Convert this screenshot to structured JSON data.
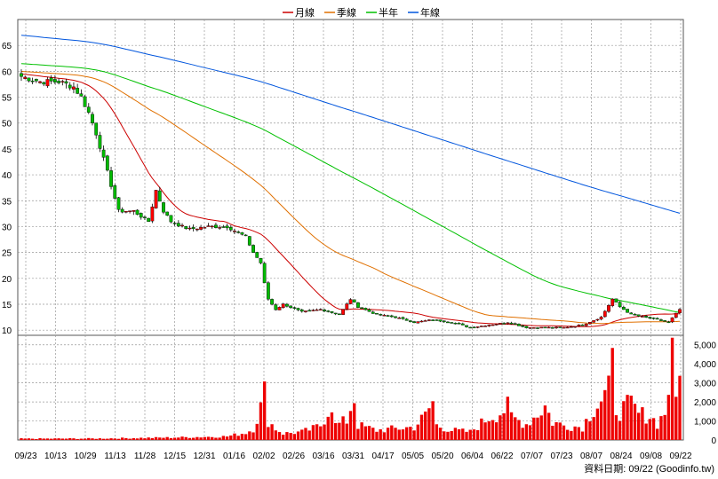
{
  "chart_data": {
    "type": "candlestick",
    "legend": [
      {
        "name": "月線",
        "color": "#cc0000"
      },
      {
        "name": "季線",
        "color": "#e07000"
      },
      {
        "name": "半年",
        "color": "#00c000"
      },
      {
        "name": "年線",
        "color": "#0055dd"
      }
    ],
    "price_axis": {
      "ylim": [
        9,
        70
      ],
      "ticks": [
        10,
        15,
        20,
        25,
        30,
        35,
        40,
        45,
        50,
        55,
        60,
        65
      ]
    },
    "volume_axis": {
      "ylim": [
        0,
        5500
      ],
      "ticks": [
        0,
        1000,
        2000,
        3000,
        4000,
        5000
      ],
      "tick_labels": [
        "0",
        "1,000",
        "2,000",
        "3,000",
        "4,000",
        "5,000"
      ]
    },
    "x_tick_labels": [
      "09/23",
      "10/13",
      "10/29",
      "11/13",
      "11/28",
      "12/15",
      "12/31",
      "01/16",
      "02/02",
      "02/26",
      "03/16",
      "03/31",
      "04/17",
      "05/05",
      "05/20",
      "06/04",
      "06/22",
      "07/07",
      "07/23",
      "08/07",
      "08/24",
      "09/08",
      "09/22"
    ],
    "price_anchors": [
      [
        0,
        59
      ],
      [
        5,
        58
      ],
      [
        10,
        58
      ],
      [
        14,
        57
      ],
      [
        16,
        55
      ],
      [
        18,
        52
      ],
      [
        20,
        48
      ],
      [
        22,
        43
      ],
      [
        24,
        38
      ],
      [
        26,
        33
      ],
      [
        30,
        33
      ],
      [
        32,
        32
      ],
      [
        34,
        31
      ],
      [
        36,
        37
      ],
      [
        38,
        33
      ],
      [
        40,
        31
      ],
      [
        43,
        30
      ],
      [
        45,
        29.5
      ],
      [
        50,
        30
      ],
      [
        55,
        30
      ],
      [
        60,
        28
      ],
      [
        62,
        25
      ],
      [
        64,
        23
      ],
      [
        65,
        19
      ],
      [
        66,
        16
      ],
      [
        68,
        14
      ],
      [
        70,
        15
      ],
      [
        75,
        13.5
      ],
      [
        80,
        14
      ],
      [
        85,
        13
      ],
      [
        88,
        16
      ],
      [
        90,
        14.5
      ],
      [
        95,
        13
      ],
      [
        100,
        12.5
      ],
      [
        105,
        11.5
      ],
      [
        110,
        12
      ],
      [
        115,
        11.5
      ],
      [
        120,
        10.5
      ],
      [
        125,
        11
      ],
      [
        130,
        11.5
      ],
      [
        135,
        10.5
      ],
      [
        140,
        10.5
      ],
      [
        145,
        10.5
      ],
      [
        150,
        11
      ],
      [
        155,
        12.5
      ],
      [
        158,
        16
      ],
      [
        160,
        14.5
      ],
      [
        163,
        13
      ],
      [
        170,
        12
      ],
      [
        173,
        11.5
      ],
      [
        176,
        14
      ]
    ],
    "volume_anchors": [
      [
        0,
        80
      ],
      [
        20,
        90
      ],
      [
        40,
        150
      ],
      [
        55,
        220
      ],
      [
        60,
        450
      ],
      [
        62,
        700
      ],
      [
        64,
        2000
      ],
      [
        65,
        2900
      ],
      [
        66,
        1200
      ],
      [
        68,
        700
      ],
      [
        70,
        400
      ],
      [
        75,
        500
      ],
      [
        78,
        700
      ],
      [
        80,
        900
      ],
      [
        82,
        1800
      ],
      [
        83,
        2300
      ],
      [
        84,
        900
      ],
      [
        87,
        1200
      ],
      [
        88,
        2000
      ],
      [
        89,
        2600
      ],
      [
        90,
        900
      ],
      [
        95,
        600
      ],
      [
        100,
        700
      ],
      [
        105,
        800
      ],
      [
        108,
        1500
      ],
      [
        110,
        2350
      ],
      [
        111,
        900
      ],
      [
        115,
        600
      ],
      [
        120,
        500
      ],
      [
        125,
        1400
      ],
      [
        128,
        1700
      ],
      [
        130,
        2000
      ],
      [
        131,
        1400
      ],
      [
        135,
        1000
      ],
      [
        138,
        1600
      ],
      [
        140,
        2100
      ],
      [
        142,
        1100
      ],
      [
        145,
        900
      ],
      [
        150,
        800
      ],
      [
        153,
        2000
      ],
      [
        155,
        2500
      ],
      [
        157,
        3000
      ],
      [
        158,
        4500
      ],
      [
        159,
        2000
      ],
      [
        160,
        1800
      ],
      [
        163,
        2200
      ],
      [
        165,
        1600
      ],
      [
        168,
        1500
      ],
      [
        170,
        1000
      ],
      [
        172,
        1700
      ],
      [
        174,
        4800
      ],
      [
        175,
        2500
      ],
      [
        176,
        5300
      ]
    ]
  },
  "footer": {
    "source_label": "資料日期: 09/22  (Goodinfo.tw)"
  }
}
